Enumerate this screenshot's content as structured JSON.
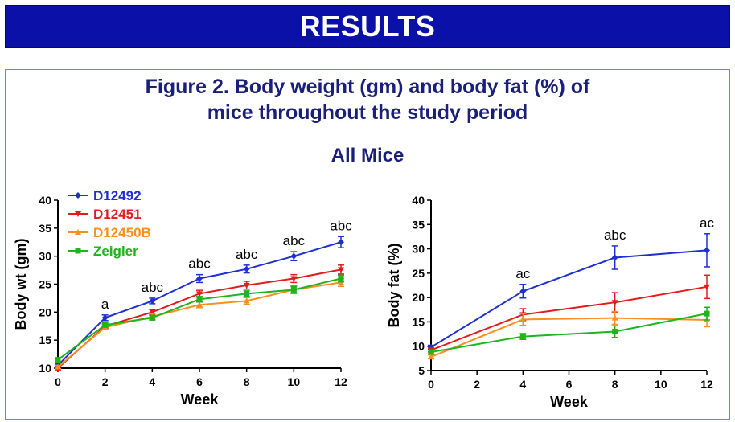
{
  "header": {
    "title": "RESULTS"
  },
  "figure": {
    "title_line1": "Figure 2.  Body weight (gm) and body fat (%) of",
    "title_line2": "mice throughout the study period",
    "subtitle": "All Mice"
  },
  "colors": {
    "banner": "#0b10a8",
    "title": "#1a1f7a",
    "D12492": "#1f2fd6",
    "D12451": "#e21c1c",
    "D12450B": "#f7901e",
    "Zeigler": "#1db41d"
  },
  "chart_data": [
    {
      "type": "line",
      "xlabel": "Week",
      "ylabel": "Body wt (gm)",
      "xlim": [
        0,
        12
      ],
      "ylim": [
        10,
        40
      ],
      "xticks": [
        0,
        2,
        4,
        6,
        8,
        10,
        12
      ],
      "yticks": [
        10,
        15,
        20,
        25,
        30,
        35,
        40
      ],
      "legend_position": "top-left",
      "series": [
        {
          "name": "D12492",
          "color": "#1f2fd6",
          "marker": "diamond",
          "x": [
            0,
            2,
            4,
            6,
            8,
            10,
            12
          ],
          "y": [
            10.5,
            19.0,
            22.0,
            26.0,
            27.7,
            30.0,
            32.5
          ],
          "err": [
            0.3,
            0.5,
            0.5,
            0.7,
            0.7,
            0.8,
            1.0
          ]
        },
        {
          "name": "D12451",
          "color": "#e21c1c",
          "marker": "triangle-down",
          "x": [
            0,
            2,
            4,
            6,
            8,
            10,
            12
          ],
          "y": [
            10.0,
            17.5,
            20.0,
            23.3,
            24.8,
            26.0,
            27.6
          ],
          "err": [
            0.3,
            0.4,
            0.5,
            0.6,
            0.7,
            0.7,
            0.8
          ]
        },
        {
          "name": "D12450B",
          "color": "#f7901e",
          "marker": "triangle-up",
          "x": [
            0,
            2,
            4,
            6,
            8,
            10,
            12
          ],
          "y": [
            10.2,
            17.3,
            19.2,
            21.3,
            22.0,
            24.0,
            25.3
          ],
          "err": [
            0.3,
            0.4,
            0.5,
            0.5,
            0.6,
            0.7,
            0.7
          ]
        },
        {
          "name": "Zeigler",
          "color": "#1db41d",
          "marker": "square",
          "x": [
            0,
            2,
            4,
            6,
            8,
            10,
            12
          ],
          "y": [
            11.5,
            17.7,
            19.0,
            22.3,
            23.3,
            24.0,
            26.0
          ],
          "err": [
            0.3,
            0.4,
            0.4,
            0.5,
            0.5,
            0.6,
            0.6
          ]
        }
      ],
      "annotations": [
        {
          "x": 2,
          "y": 19.0,
          "text": "a"
        },
        {
          "x": 4,
          "y": 22.0,
          "text": "abc"
        },
        {
          "x": 6,
          "y": 26.0,
          "text": "abc"
        },
        {
          "x": 8,
          "y": 27.7,
          "text": "abc"
        },
        {
          "x": 10,
          "y": 30.0,
          "text": "abc"
        },
        {
          "x": 12,
          "y": 32.5,
          "text": "abc"
        }
      ]
    },
    {
      "type": "line",
      "xlabel": "Week",
      "ylabel": "Body fat (%)",
      "xlim": [
        0,
        12
      ],
      "ylim": [
        5,
        40
      ],
      "xticks": [
        0,
        2,
        4,
        6,
        8,
        10,
        12
      ],
      "yticks": [
        5,
        10,
        15,
        20,
        25,
        30,
        35,
        40
      ],
      "series": [
        {
          "name": "D12492",
          "color": "#1f2fd6",
          "marker": "diamond",
          "x": [
            0,
            4,
            8,
            12
          ],
          "y": [
            9.8,
            21.3,
            28.2,
            29.7
          ],
          "err": [
            0.4,
            1.4,
            2.4,
            3.4
          ]
        },
        {
          "name": "D12451",
          "color": "#e21c1c",
          "marker": "triangle-down",
          "x": [
            0,
            4,
            8,
            12
          ],
          "y": [
            9.2,
            16.5,
            19.0,
            22.2
          ],
          "err": [
            0.4,
            1.2,
            2.0,
            2.4
          ]
        },
        {
          "name": "D12450B",
          "color": "#f7901e",
          "marker": "triangle-up",
          "x": [
            0,
            4,
            8,
            12
          ],
          "y": [
            7.8,
            15.5,
            15.8,
            15.4
          ],
          "err": [
            0.4,
            1.2,
            1.3,
            1.4
          ]
        },
        {
          "name": "Zeigler",
          "color": "#1db41d",
          "marker": "square",
          "x": [
            0,
            4,
            8,
            12
          ],
          "y": [
            8.8,
            12.0,
            13.0,
            16.7
          ],
          "err": [
            0.4,
            0.6,
            1.2,
            1.3
          ]
        }
      ],
      "annotations": [
        {
          "x": 4,
          "y": 21.3,
          "text": "ac"
        },
        {
          "x": 8,
          "y": 28.2,
          "text": "abc"
        },
        {
          "x": 12,
          "y": 29.7,
          "text": "ac"
        }
      ]
    }
  ]
}
